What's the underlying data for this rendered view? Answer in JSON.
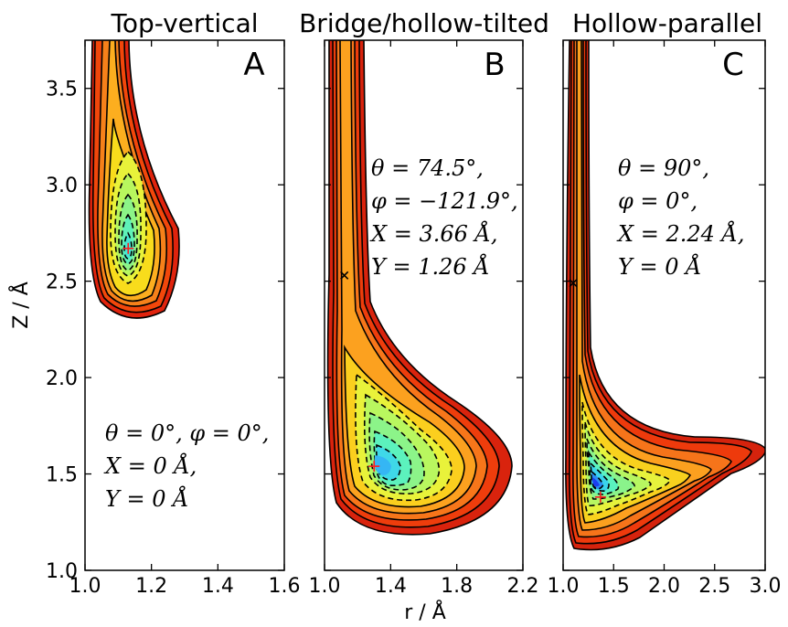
{
  "chart_data": [
    {
      "type": "contour",
      "title": "Top-vertical",
      "panel_label": "A",
      "xlabel": "r / Å",
      "ylabel": "Z / Å",
      "xlim": [
        1.0,
        1.6
      ],
      "ylim": [
        1.0,
        3.75
      ],
      "xticks": [
        "1.0",
        "1.2",
        "1.4",
        "1.6"
      ],
      "yticks": [
        "1.0",
        "1.5",
        "2.0",
        "2.5",
        "3.0",
        "3.5"
      ],
      "annotation": [
        "θ = 0°, φ = 0°,",
        "X = 0 Å,",
        "Y = 0 Å"
      ],
      "minimum": {
        "r": 1.13,
        "z": 2.67
      },
      "colormap": "jet",
      "levels": 12
    },
    {
      "type": "contour",
      "title": "Bridge/hollow-tilted",
      "panel_label": "B",
      "xlabel": "r / Å",
      "xlim": [
        1.0,
        2.2
      ],
      "ylim": [
        1.0,
        3.75
      ],
      "xticks": [
        "1.0",
        "1.4",
        "1.8",
        "2.2"
      ],
      "annotation": [
        "θ = 74.5°,",
        "φ = −121.9°,",
        "X = 3.66 Å,",
        "Y = 1.26 Å"
      ],
      "minimum": {
        "r": 1.3,
        "z": 1.54
      },
      "saddle": {
        "r": 1.12,
        "z": 2.53
      },
      "colormap": "jet",
      "levels": 12
    },
    {
      "type": "contour",
      "title": "Hollow-parallel",
      "panel_label": "C",
      "xlabel": "r / Å",
      "xlim": [
        1.0,
        3.0
      ],
      "ylim": [
        1.0,
        3.75
      ],
      "xticks": [
        "1.0",
        "1.5",
        "2.0",
        "2.5",
        "3.0"
      ],
      "annotation": [
        "θ = 90°,",
        "φ = 0°,",
        "X = 2.24 Å,",
        "Y = 0 Å"
      ],
      "minimum": {
        "r": 1.37,
        "z": 1.38
      },
      "saddle": {
        "r": 1.1,
        "z": 2.49
      },
      "colormap": "jet",
      "levels": 14
    }
  ],
  "shared": {
    "xlabel": "r / Å",
    "ylabel": "Z / Å"
  }
}
